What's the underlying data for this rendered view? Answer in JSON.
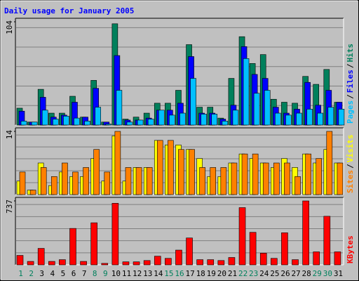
{
  "chart_data": [
    {
      "type": "bar",
      "title": "Daily usage for January 2005",
      "title_color": "#0000ff",
      "ylim": [
        0,
        104
      ],
      "yticks": [
        104
      ],
      "legend_separator": "/",
      "series": [
        {
          "name": "Hits",
          "color": "#00805c",
          "values": [
            17,
            3,
            36,
            12,
            12,
            29,
            8,
            45,
            3,
            102,
            6,
            8,
            12,
            22,
            22,
            35,
            81,
            18,
            18,
            7,
            47,
            89,
            62,
            71,
            26,
            23,
            22,
            49,
            41,
            56,
            23
          ]
        },
        {
          "name": "Files",
          "color": "#0000ff",
          "values": [
            14,
            3,
            28,
            8,
            10,
            23,
            8,
            37,
            3,
            70,
            5,
            5,
            7,
            15,
            15,
            22,
            69,
            12,
            12,
            6,
            20,
            79,
            51,
            47,
            18,
            12,
            16,
            43,
            20,
            35,
            23
          ]
        },
        {
          "name": "Pages",
          "color": "#00c0ff",
          "values": [
            4,
            3,
            15,
            6,
            9,
            7,
            4,
            18,
            1,
            35,
            3,
            5,
            6,
            15,
            10,
            12,
            47,
            11,
            11,
            4,
            15,
            67,
            32,
            35,
            12,
            10,
            12,
            16,
            12,
            18,
            16
          ]
        }
      ]
    },
    {
      "type": "bar",
      "ylim": [
        0,
        14
      ],
      "yticks": [
        14
      ],
      "legend_separator": "/",
      "series": [
        {
          "name": "Visits",
          "color": "#ffff00",
          "values": [
            3,
            1,
            7,
            2,
            5,
            4,
            4,
            8,
            3,
            13,
            3,
            6,
            6,
            12,
            11,
            11,
            10,
            8,
            4,
            4,
            7,
            9,
            8,
            7,
            6,
            8,
            6,
            9,
            7,
            10,
            7
          ]
        },
        {
          "name": "Sites",
          "color": "#ff8000",
          "values": [
            5,
            1,
            6,
            4,
            7,
            5,
            6,
            10,
            5,
            14,
            6,
            6,
            6,
            12,
            12,
            10,
            10,
            6,
            6,
            6,
            7,
            9,
            9,
            7,
            7,
            7,
            4,
            9,
            8,
            14,
            7
          ]
        }
      ]
    },
    {
      "type": "bar",
      "ylim": [
        0,
        737
      ],
      "yticks": [
        737
      ],
      "series": [
        {
          "name": "KBytes",
          "color": "#ff0000",
          "values": [
            109,
            40,
            190,
            40,
            60,
            420,
            40,
            485,
            17,
            710,
            35,
            35,
            50,
            100,
            75,
            170,
            310,
            60,
            60,
            50,
            85,
            660,
            375,
            135,
            75,
            370,
            60,
            737,
            150,
            560,
            150
          ]
        }
      ],
      "categories": [
        "1",
        "2",
        "3",
        "4",
        "5",
        "6",
        "7",
        "8",
        "9",
        "10",
        "11",
        "12",
        "13",
        "14",
        "15",
        "16",
        "17",
        "18",
        "19",
        "20",
        "21",
        "22",
        "23",
        "24",
        "25",
        "26",
        "27",
        "28",
        "29",
        "30",
        "31"
      ],
      "category_colors": [
        "#00805c",
        "#00805c",
        "#000000",
        "#000000",
        "#000000",
        "#000000",
        "#000000",
        "#00805c",
        "#00805c",
        "#000000",
        "#000000",
        "#000000",
        "#000000",
        "#000000",
        "#00805c",
        "#00805c",
        "#000000",
        "#000000",
        "#000000",
        "#000000",
        "#000000",
        "#00805c",
        "#00805c",
        "#000000",
        "#000000",
        "#000000",
        "#000000",
        "#000000",
        "#00805c",
        "#00805c",
        "#000000"
      ]
    }
  ]
}
